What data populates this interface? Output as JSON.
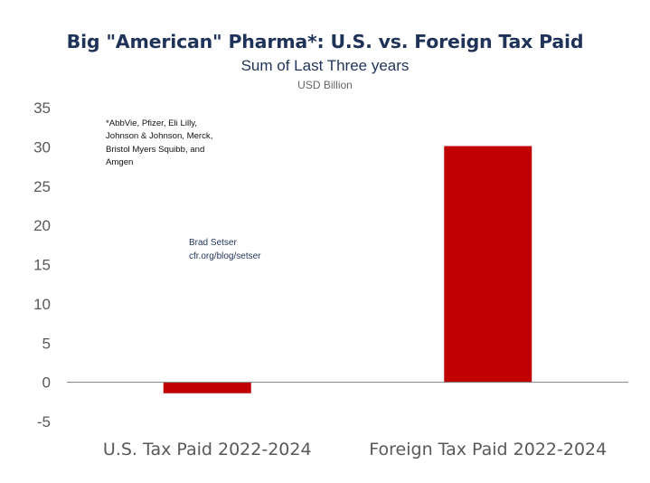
{
  "title": "Big \"American\" Pharma*: U.S. vs. Foreign Tax Paid",
  "subtitle": "Sum of Last Three years",
  "units": "USD Billion",
  "note": {
    "lines": [
      "*AbbVie, Pfizer, Eli Lilly,",
      "Johnson & Johnson, Merck,",
      "Bristol Myers Squibb, and",
      "Amgen"
    ]
  },
  "credit": {
    "name": "Brad Setser",
    "site": "cfr.org/blog/setser"
  },
  "colors": {
    "bar": "#c00000",
    "title": "#1f3358",
    "axis_text": "#595959",
    "axis_line": "#7f7f7f"
  },
  "chart_data": {
    "type": "bar",
    "title": "Big \"American\" Pharma*: U.S. vs. Foreign Tax Paid",
    "subtitle": "Sum of Last Three years",
    "ylabel": "USD Billion",
    "xlabel": "",
    "categories": [
      "U.S. Tax Paid 2022-2024",
      "Foreign Tax Paid 2022-2024"
    ],
    "values": [
      -1.4,
      30.1
    ],
    "ylim": [
      -5,
      35
    ],
    "yticks": [
      "35",
      "30",
      "25",
      "20",
      "15",
      "10",
      "5",
      "0",
      "-5"
    ],
    "ytick_values": [
      35,
      30,
      25,
      20,
      15,
      10,
      5,
      0,
      -5
    ],
    "grid": false,
    "legend": "none"
  }
}
